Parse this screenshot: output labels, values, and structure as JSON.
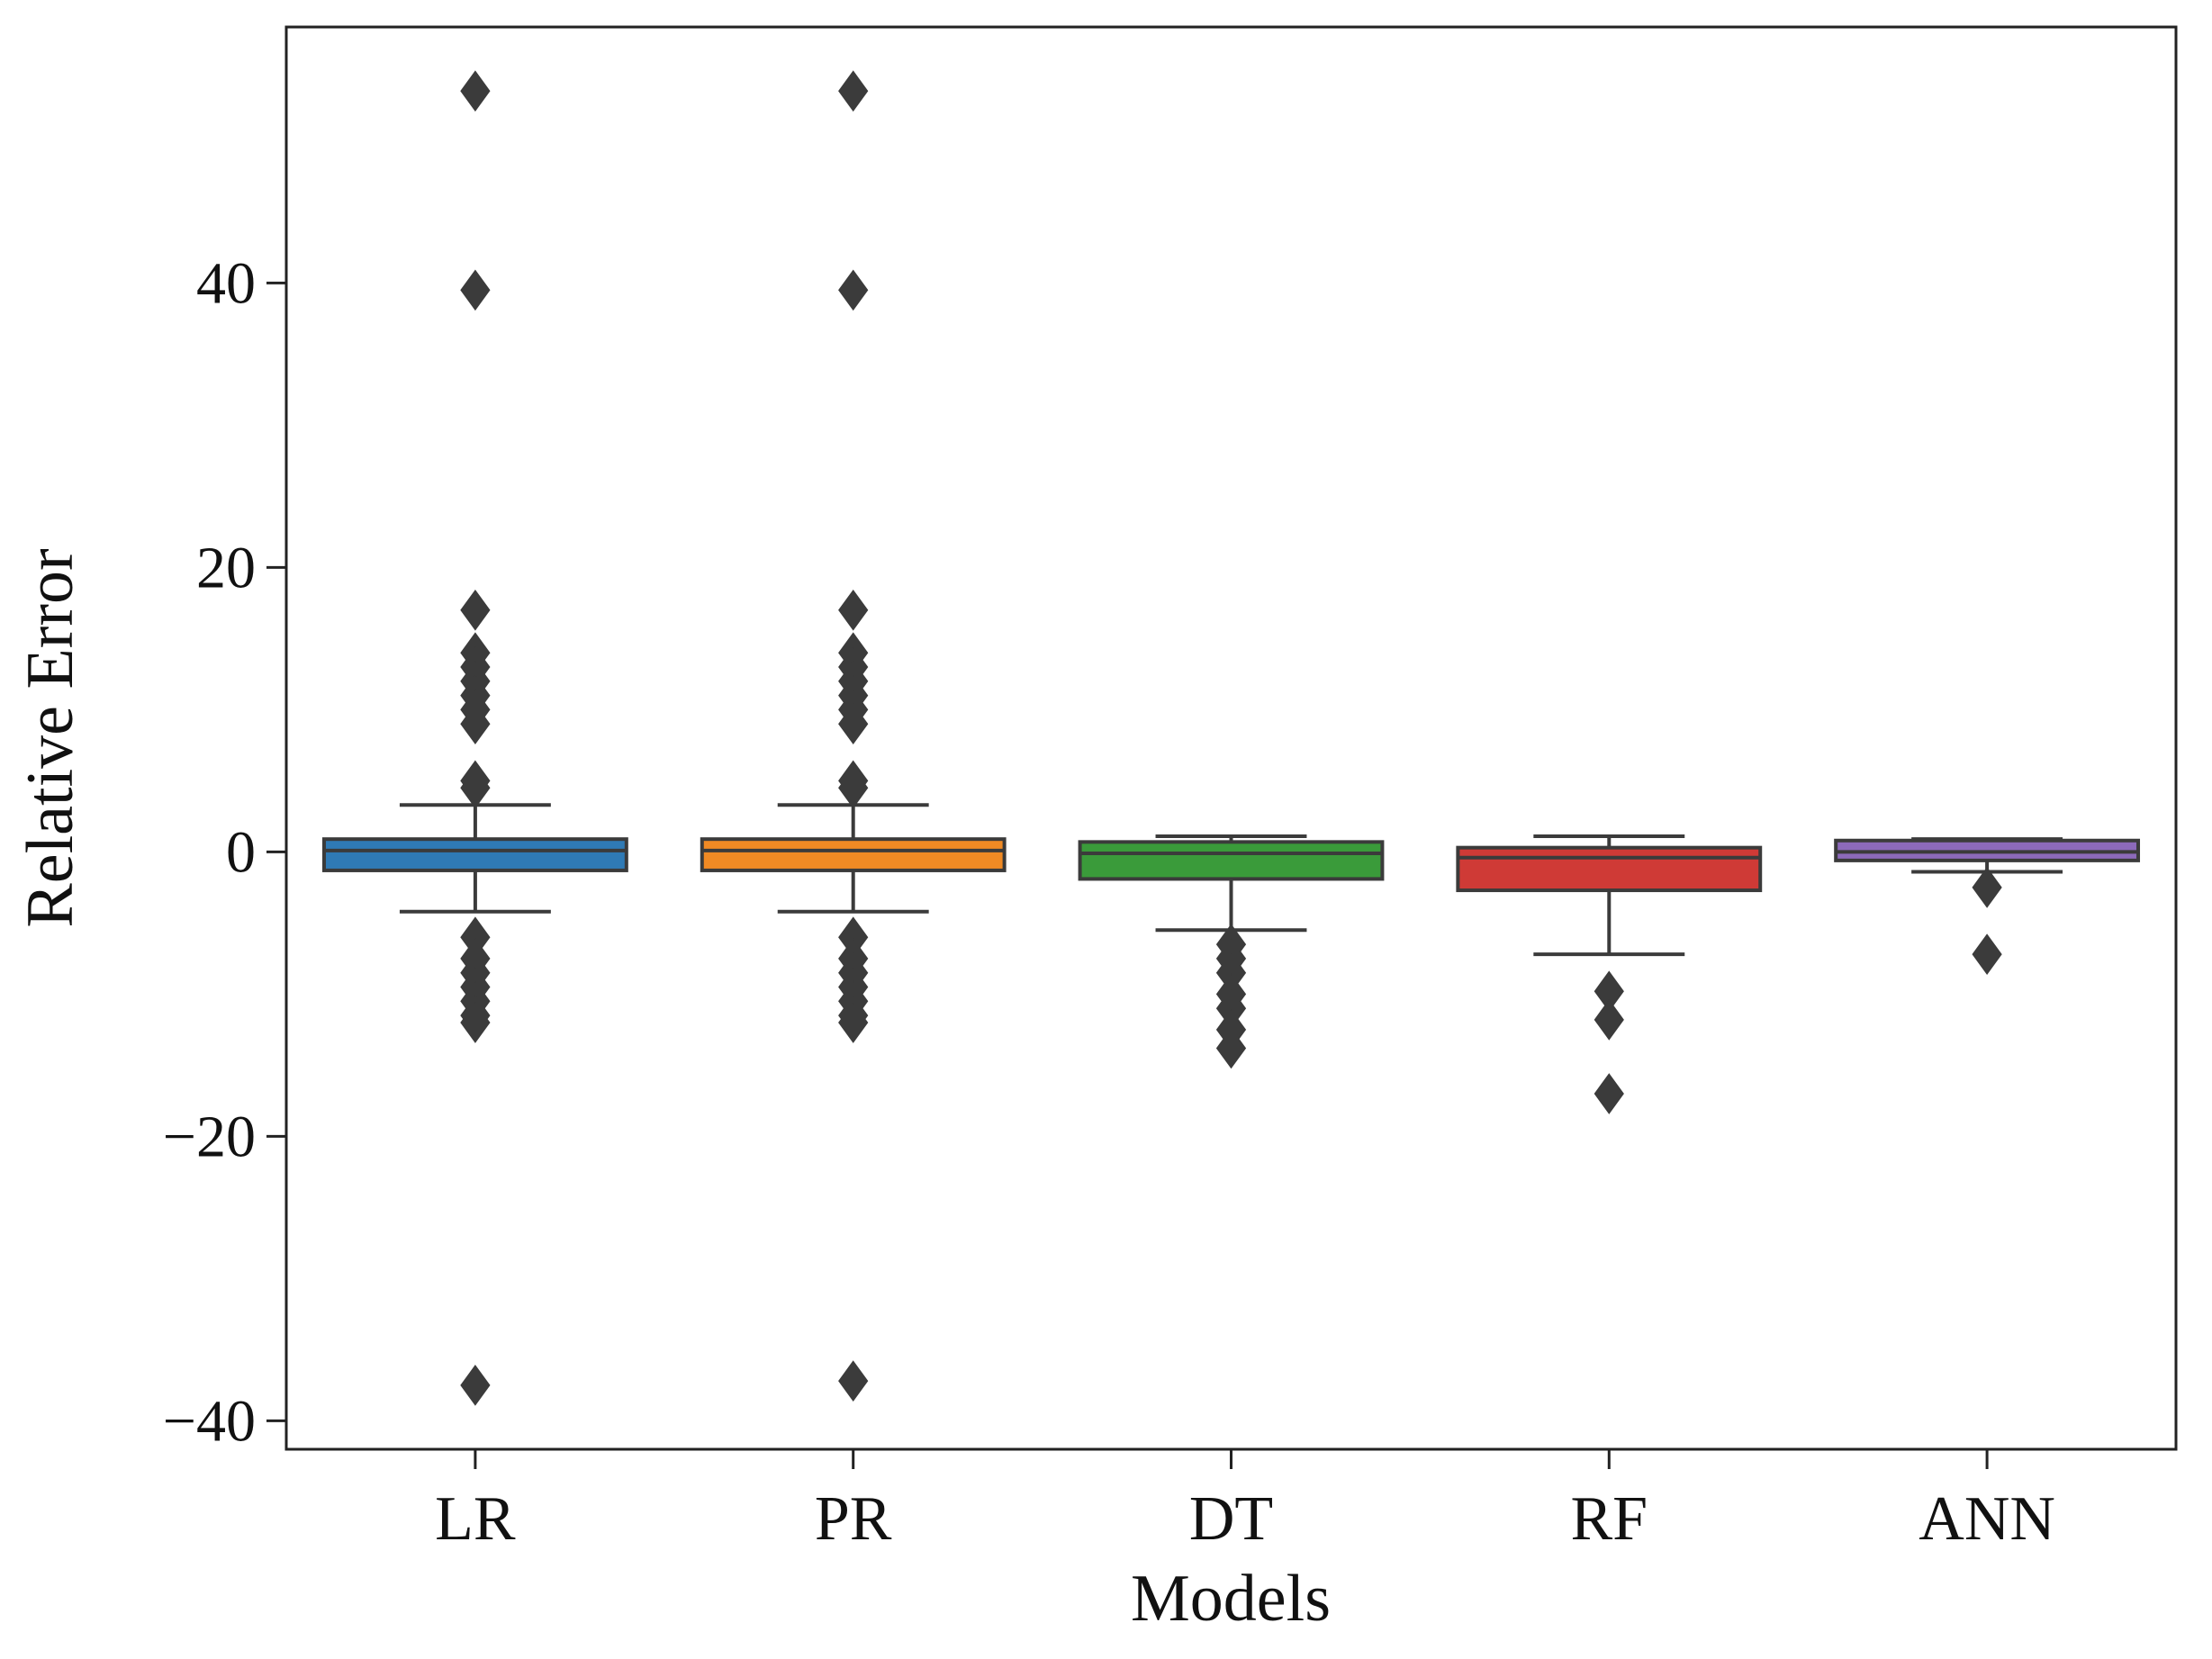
{
  "chart_data": {
    "type": "box",
    "title": "",
    "xlabel": "Models",
    "ylabel": "Relative Error",
    "ylim": [
      -42,
      58
    ],
    "yticks": [
      -40,
      -20,
      0,
      20,
      40
    ],
    "ytick_labels": [
      "−40",
      "−20",
      "0",
      "20",
      "40"
    ],
    "categories": [
      "LR",
      "PR",
      "DT",
      "RF",
      "ANN"
    ],
    "grid": false,
    "boxes": [
      {
        "name": "LR",
        "color": "#2f7ab5",
        "whisker_low": -4.2,
        "q1": -1.3,
        "median": 0.1,
        "q3": 0.9,
        "whisker_high": 3.3,
        "outliers": [
          53.5,
          39.5,
          17.0,
          14.0,
          13.0,
          12.0,
          11.0,
          10.0,
          9.0,
          5.0,
          4.5,
          -6.0,
          -7.5,
          -8.5,
          -9.5,
          -10.5,
          -11.5,
          -12.0,
          -37.5
        ]
      },
      {
        "name": "PR",
        "color": "#f08a24",
        "whisker_low": -4.2,
        "q1": -1.3,
        "median": 0.1,
        "q3": 0.9,
        "whisker_high": 3.3,
        "outliers": [
          53.5,
          39.5,
          17.0,
          14.0,
          13.0,
          12.0,
          11.0,
          10.0,
          9.0,
          5.0,
          4.5,
          -6.0,
          -7.5,
          -8.5,
          -9.5,
          -10.5,
          -11.5,
          -12.0,
          -37.2
        ]
      },
      {
        "name": "DT",
        "color": "#3a9b3a",
        "whisker_low": -5.5,
        "q1": -1.9,
        "median": -0.1,
        "q3": 0.7,
        "whisker_high": 1.1,
        "outliers": [
          -6.5,
          -7.5,
          -8.5,
          -10.0,
          -11.0,
          -12.5,
          -13.8
        ]
      },
      {
        "name": "RF",
        "color": "#cf3a36",
        "whisker_low": -7.2,
        "q1": -2.7,
        "median": -0.4,
        "q3": 0.3,
        "whisker_high": 1.1,
        "outliers": [
          -9.8,
          -11.8,
          -17.0
        ]
      },
      {
        "name": "ANN",
        "color": "#8c6aba",
        "whisker_low": -1.4,
        "q1": -0.6,
        "median": 0.0,
        "q3": 0.8,
        "whisker_high": 0.9,
        "outliers": [
          -2.5,
          -7.2
        ]
      }
    ]
  }
}
